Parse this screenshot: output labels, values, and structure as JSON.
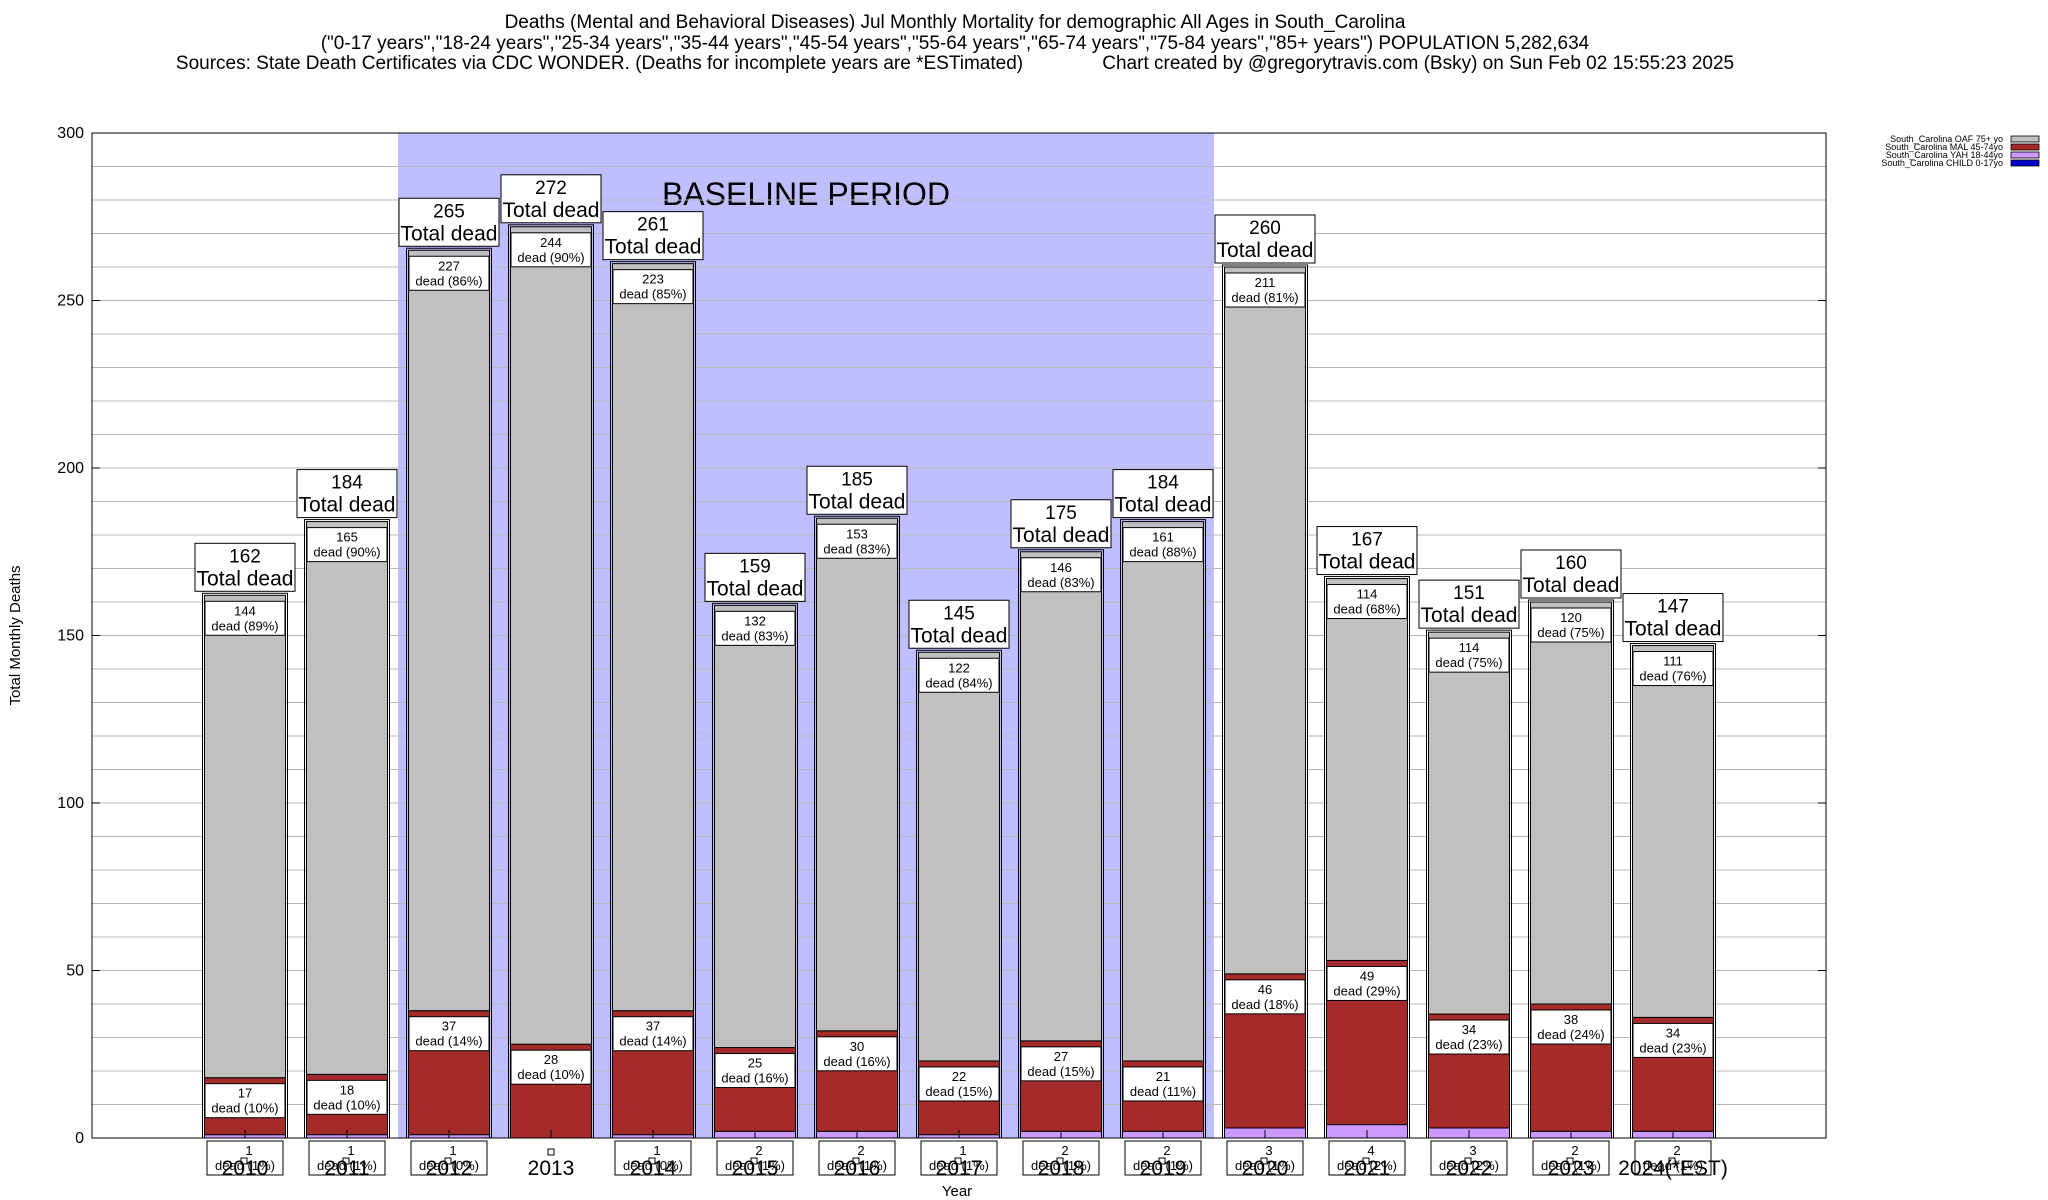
{
  "header": {
    "line1": "Deaths (Mental and Behavioral Diseases) Jul Monthly Mortality for demographic All Ages in South_Carolina",
    "line2": "(\"0-17 years\",\"18-24 years\",\"25-34 years\",\"35-44 years\",\"45-54 years\",\"55-64 years\",\"65-74 years\",\"75-84 years\",\"85+ years\") POPULATION 5,282,634",
    "line3": "Sources: State Death Certificates via CDC WONDER. (Deaths for incomplete years are *ESTimated)               Chart created by @gregorytravis.com (Bsky) on Sun Feb 02 15:55:23 2025"
  },
  "chart_data": {
    "type": "bar",
    "stacked": true,
    "title": "Deaths (Mental and Behavioral Diseases) Jul Monthly Mortality for demographic All Ages in South_Carolina",
    "xlabel": "Year",
    "ylabel": "Total Monthly Deaths",
    "ylim": [
      0,
      300
    ],
    "yticks": [
      0,
      50,
      100,
      150,
      200,
      250,
      300
    ],
    "grid": true,
    "legend_position": "top-right",
    "categories": [
      "2010",
      "2011",
      "2012",
      "2013",
      "2014",
      "2015",
      "2016",
      "2017",
      "2018",
      "2019",
      "2020",
      "2021",
      "2022",
      "2023",
      "2024(*EST)"
    ],
    "totals": [
      162,
      184,
      265,
      272,
      261,
      159,
      185,
      145,
      175,
      184,
      260,
      167,
      151,
      160,
      147
    ],
    "total_label": "Total dead",
    "segment_label": "dead",
    "series": [
      {
        "name": "South_Carolina CHILD 0-17yo",
        "color": "#0000cc",
        "values": [
          0,
          0,
          0,
          0,
          0,
          0,
          0,
          0,
          0,
          0,
          0,
          0,
          0,
          0,
          0
        ]
      },
      {
        "name": "South_Carolina YAH 18-44yo",
        "color": "#cc99ff",
        "values": [
          1,
          1,
          1,
          0,
          1,
          2,
          2,
          1,
          2,
          2,
          3,
          4,
          3,
          2,
          2
        ],
        "labels": [
          "1",
          "1",
          "1",
          "",
          "1",
          "2",
          "2",
          "1",
          "2",
          "2",
          "3",
          "4",
          "3",
          "2",
          "2"
        ],
        "percents": [
          "(1%)",
          "(1%)",
          "(0%)",
          "",
          "(0%)",
          "(1%)",
          "(1%)",
          "(1%)",
          "(1%)",
          "(1%)",
          "(1%)",
          "(2%)",
          "(2%)",
          "(1%)",
          "(1%)"
        ]
      },
      {
        "name": "South_Carolina MAL 45-74yo",
        "color": "#a52a2a",
        "values": [
          17,
          18,
          37,
          28,
          37,
          25,
          30,
          22,
          27,
          21,
          46,
          49,
          34,
          38,
          34
        ],
        "percents": [
          "(10%)",
          "(10%)",
          "(14%)",
          "(10%)",
          "(14%)",
          "(16%)",
          "(16%)",
          "(15%)",
          "(15%)",
          "(11%)",
          "(18%)",
          "(29%)",
          "(23%)",
          "(24%)",
          "(23%)"
        ]
      },
      {
        "name": "South_Carolina OAF 75+ yo",
        "color": "#c0c0c0",
        "values": [
          144,
          165,
          227,
          244,
          223,
          132,
          153,
          122,
          146,
          161,
          211,
          114,
          114,
          120,
          111
        ],
        "percents": [
          "(89%)",
          "(90%)",
          "(86%)",
          "(90%)",
          "(85%)",
          "(83%)",
          "(83%)",
          "(84%)",
          "(83%)",
          "(88%)",
          "(81%)",
          "(68%)",
          "(75%)",
          "(75%)",
          "(76%)"
        ]
      }
    ],
    "annotations": [
      {
        "text": "BASELINE PERIOD",
        "from": "2012",
        "to": "2019",
        "color": "#bfbfff"
      }
    ]
  }
}
